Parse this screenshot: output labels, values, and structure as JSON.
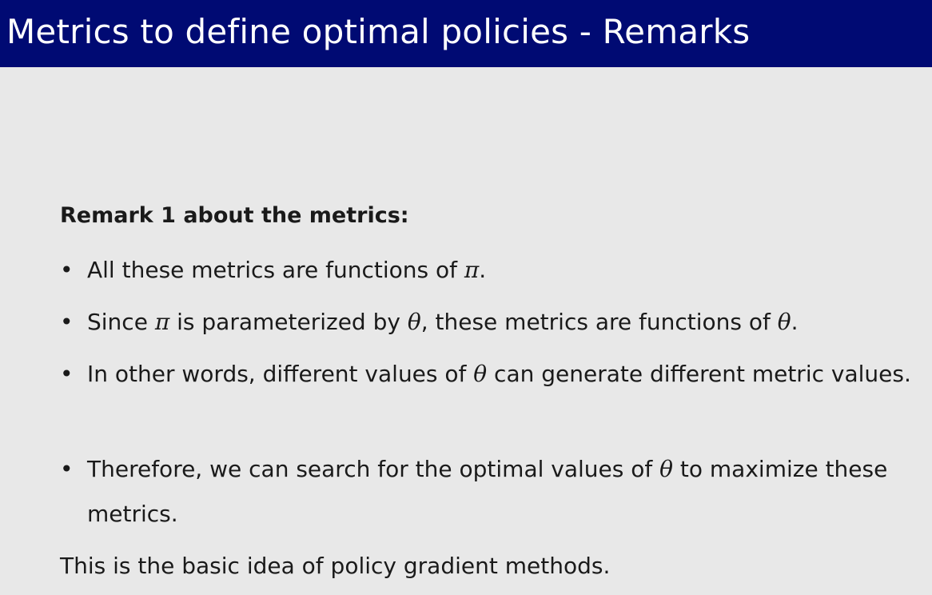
{
  "slide": {
    "title": "Metrics to define optimal policies - Remarks",
    "remark_heading": "Remark 1 about the metrics:",
    "bullets": [
      {
        "parts": [
          "All these metrics are functions of ",
          "π",
          "."
        ]
      },
      {
        "parts": [
          "Since ",
          "π",
          " is parameterized by ",
          "θ",
          ", these metrics are functions of ",
          "θ",
          "."
        ]
      },
      {
        "parts": [
          "In other words, different values of ",
          "θ",
          " can generate different metric values."
        ]
      },
      {
        "parts": [
          "Therefore, we can search for the optimal values of ",
          "θ",
          " to maximize these metrics."
        ]
      }
    ],
    "bullet_symbol": "•",
    "conclusion": "This is the basic idea of policy gradient methods."
  }
}
